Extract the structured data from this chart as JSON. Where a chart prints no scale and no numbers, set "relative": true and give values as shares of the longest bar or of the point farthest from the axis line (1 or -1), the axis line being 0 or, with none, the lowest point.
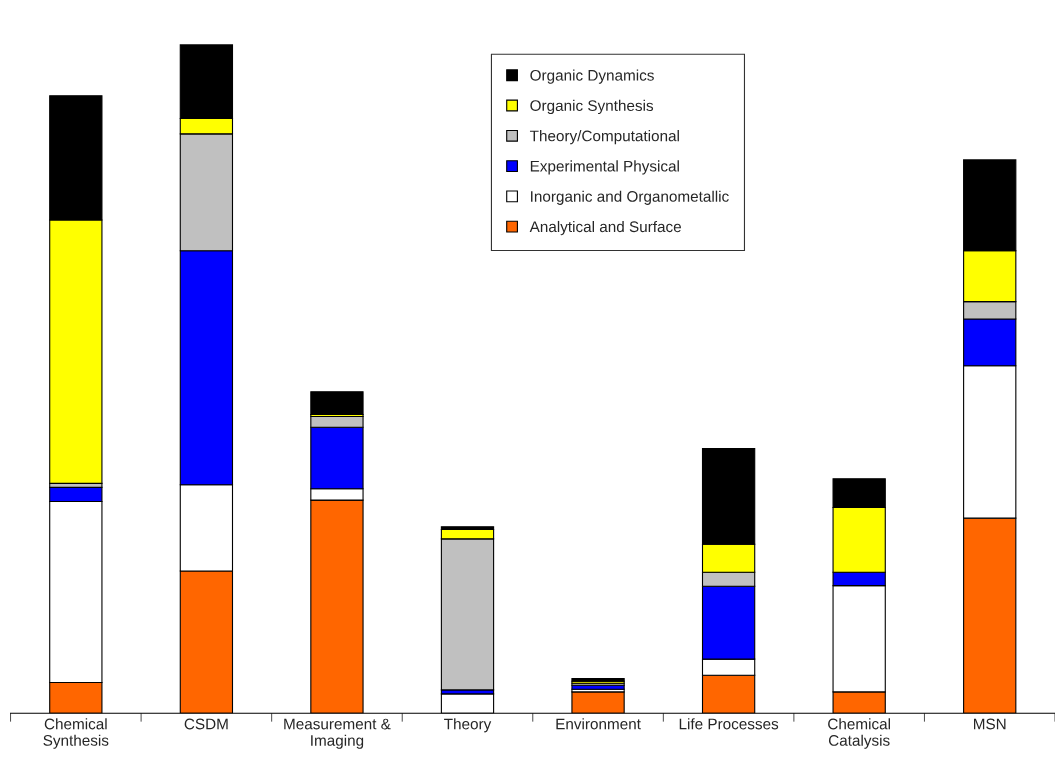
{
  "chart_data": {
    "type": "bar",
    "stacked": true,
    "relative": true,
    "legend": "top right",
    "grid": false,
    "tick_labels": "x",
    "categories": [
      "Chemical\nSynthesis",
      "CSDM",
      "Measurement &\nImaging",
      "Theory",
      "Environment",
      "Life Processes",
      "Chemical\nCatalysis",
      "MSN"
    ],
    "series": [
      {
        "name": "Analytical and Surface",
        "color": "#ff6600",
        "values": [
          0.046,
          0.213,
          0.319,
          0,
          0.032,
          0.057,
          0.032,
          0.292
        ]
      },
      {
        "name": "Inorganic and Organometallic",
        "color": "#ffffff",
        "values": [
          0.271,
          0.129,
          0.017,
          0.029,
          0.004,
          0.024,
          0.159,
          0.228
        ]
      },
      {
        "name": "Experimental Physical",
        "color": "#0000ff",
        "values": [
          0.021,
          0.35,
          0.092,
          0.006,
          0.006,
          0.109,
          0.02,
          0.07
        ]
      },
      {
        "name": "Theory/Computational",
        "color": "#c0c0c0",
        "values": [
          0.006,
          0.175,
          0.016,
          0.226,
          0.003,
          0.021,
          0,
          0.026
        ]
      },
      {
        "name": "Organic Synthesis",
        "color": "#ffff00",
        "values": [
          0.394,
          0.023,
          0.003,
          0.014,
          0.003,
          0.042,
          0.097,
          0.076
        ]
      },
      {
        "name": "Organic Dynamics",
        "color": "#000000",
        "values": [
          0.186,
          0.11,
          0.034,
          0.004,
          0.004,
          0.143,
          0.043,
          0.136
        ]
      }
    ]
  }
}
